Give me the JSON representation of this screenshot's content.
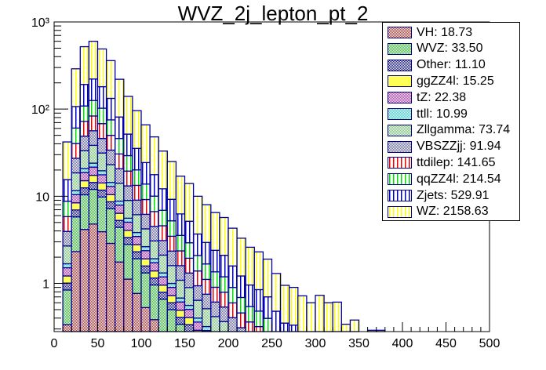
{
  "title": "WVZ_2j_lepton_pt_2",
  "chart_data": {
    "type": "bar",
    "stacked": true,
    "title": "WVZ_2j_lepton_pt_2",
    "xlabel": "",
    "ylabel": "",
    "xlim": [
      0,
      500
    ],
    "ylim": [
      0.28,
      1000
    ],
    "yscale": "log",
    "bin_width": 10,
    "x_ticks": [
      "0",
      "50",
      "100",
      "150",
      "200",
      "250",
      "300",
      "350",
      "400",
      "450",
      "500"
    ],
    "y_ticks": [
      {
        "value": 1,
        "label": "1"
      },
      {
        "value": 10,
        "label": "10"
      },
      {
        "value": 100,
        "label": "10²"
      },
      {
        "value": 1000,
        "label": "10³"
      }
    ],
    "legend_position": "top-right",
    "bin_lows": [
      10,
      20,
      30,
      40,
      50,
      60,
      70,
      80,
      90,
      100,
      110,
      120,
      130,
      140,
      150,
      160,
      170,
      180,
      190,
      200,
      210,
      220,
      230,
      240,
      250,
      260,
      270,
      280,
      290,
      300,
      310,
      320,
      330,
      340,
      360,
      370
    ],
    "totals": [
      42,
      290,
      520,
      600,
      490,
      360,
      220,
      140,
      96,
      66,
      48,
      33,
      25,
      17,
      14,
      10,
      8,
      6.5,
      5.7,
      4.3,
      3.3,
      2.6,
      2.3,
      1.9,
      1.3,
      0.95,
      0.9,
      0.72,
      0.6,
      0.73,
      0.6,
      0.61,
      0.34,
      0.38,
      0.29,
      0.29
    ],
    "series": [
      {
        "name": "VH",
        "legend": "VH: 18.73",
        "color": "#cc3333",
        "pattern": "cross",
        "fraction": 0.008
      },
      {
        "name": "WVZ",
        "legend": "WVZ: 33.50",
        "color": "#33cc33",
        "pattern": "cross",
        "fraction": 0.012
      },
      {
        "name": "Other",
        "legend": "Other: 11.10",
        "color": "#1010bb",
        "pattern": "cross",
        "fraction": 0.004
      },
      {
        "name": "ggZZ4l",
        "legend": "ggZZ4l: 15.25",
        "color": "#ffff55",
        "pattern": "solid",
        "fraction": 0.005
      },
      {
        "name": "tZ",
        "legend": "tZ: 22.38",
        "color": "#cc33cc",
        "pattern": "cross",
        "fraction": 0.007
      },
      {
        "name": "ttll",
        "legend": "ttll: 10.99",
        "color": "#33dddd",
        "pattern": "cross",
        "fraction": 0.004
      },
      {
        "name": "Zllgamma",
        "legend": "Zllgamma: 73.74",
        "color": "#77cc77",
        "pattern": "cross",
        "fraction": 0.024
      },
      {
        "name": "VBSZZjj",
        "legend": "VBSZZjj: 91.94",
        "color": "#6666bb",
        "pattern": "cross",
        "fraction": 0.03
      },
      {
        "name": "ttdilep",
        "legend": "ttdilep: 141.65",
        "color": "#ee0000",
        "pattern": "vline",
        "fraction": 0.045
      },
      {
        "name": "qqZZ4l",
        "legend": "qqZZ4l: 214.54",
        "color": "#00dd00",
        "pattern": "vline",
        "fraction": 0.07
      },
      {
        "name": "Zjets",
        "legend": "Zjets: 529.91",
        "color": "#0000cc",
        "pattern": "vline",
        "fraction": 0.16
      },
      {
        "name": "WZ",
        "legend": "WZ: 2158.63",
        "color": "#ffff00",
        "pattern": "vline",
        "fraction": 0.631
      }
    ]
  }
}
